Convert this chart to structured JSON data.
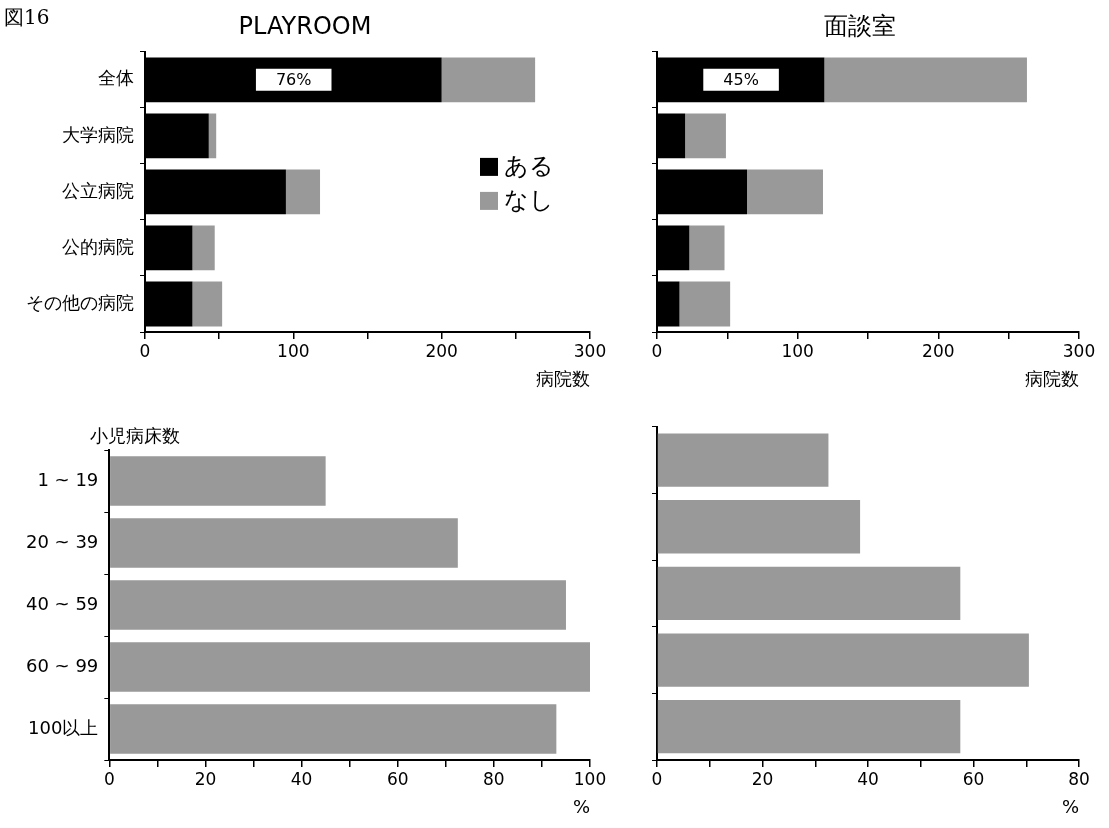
{
  "chart_data": [
    {
      "type": "bar",
      "orientation": "horizontal",
      "stacked": true,
      "title": "PLAYROOM",
      "xlabel": "病院数",
      "categories": [
        "全体",
        "大学病院",
        "公立病院",
        "公的病院",
        "その他の病院"
      ],
      "series": [
        {
          "name": "ある",
          "color": "#000000",
          "values": [
            200,
            43,
            95,
            32,
            32
          ]
        },
        {
          "name": "なし",
          "color": "#999999",
          "values": [
            63,
            5,
            23,
            15,
            20
          ]
        }
      ],
      "xlim": [
        0,
        300
      ],
      "xticks": [
        0,
        {
          "value": 50,
          "label": null
        },
        100,
        {
          "value": 150,
          "label": null
        },
        200,
        {
          "value": 250,
          "label": null
        },
        300
      ],
      "grid": false,
      "legend": "right",
      "annotations": [
        "図16",
        "76%"
      ]
    },
    {
      "type": "bar",
      "orientation": "horizontal",
      "stacked": true,
      "title": "面談室",
      "xlabel": "病院数",
      "categories": [
        null,
        null,
        null,
        null,
        null
      ],
      "series": [
        {
          "color": "#000000",
          "values": [
            119,
            20,
            64,
            23,
            16
          ]
        },
        {
          "color": "#999999",
          "values": [
            144,
            29,
            54,
            25,
            36
          ]
        }
      ],
      "xlim": [
        0,
        300
      ],
      "xticks": [
        0,
        {
          "value": 50,
          "label": null
        },
        100,
        {
          "value": 150,
          "label": null
        },
        200,
        {
          "value": 250,
          "label": null
        },
        300
      ],
      "grid": false,
      "annotations": [
        "45%"
      ]
    },
    {
      "type": "bar",
      "orientation": "horizontal",
      "ylabel": "小児病床数",
      "xlabel": "%",
      "categories": [
        "1 ~ 19",
        "20 ~ 39",
        "40 ~ 59",
        "60 ~ 99",
        "100以上"
      ],
      "series": [
        {
          "color": "#999999",
          "values": [
            45,
            72.5,
            95,
            100,
            93
          ]
        }
      ],
      "xlim": [
        0,
        100
      ],
      "xticks": [
        0,
        {
          "value": 10,
          "label": null
        },
        20,
        {
          "value": 30,
          "label": null
        },
        40,
        {
          "value": 50,
          "label": null
        },
        60,
        {
          "value": 70,
          "label": null
        },
        80,
        {
          "value": 90,
          "label": null
        },
        100
      ],
      "grid": false
    },
    {
      "type": "bar",
      "orientation": "horizontal",
      "xlabel": "%",
      "categories": [
        null,
        null,
        null,
        null,
        null
      ],
      "series": [
        {
          "color": "#999999",
          "values": [
            32.5,
            38.5,
            57.5,
            70.5,
            57.5
          ]
        }
      ],
      "xlim": [
        0,
        80
      ],
      "xticks": [
        0,
        {
          "value": 10,
          "label": null
        },
        20,
        {
          "value": 30,
          "label": null
        },
        40,
        {
          "value": 50,
          "label": null
        },
        60,
        {
          "value": 70,
          "label": null
        },
        80
      ],
      "grid": false
    }
  ]
}
